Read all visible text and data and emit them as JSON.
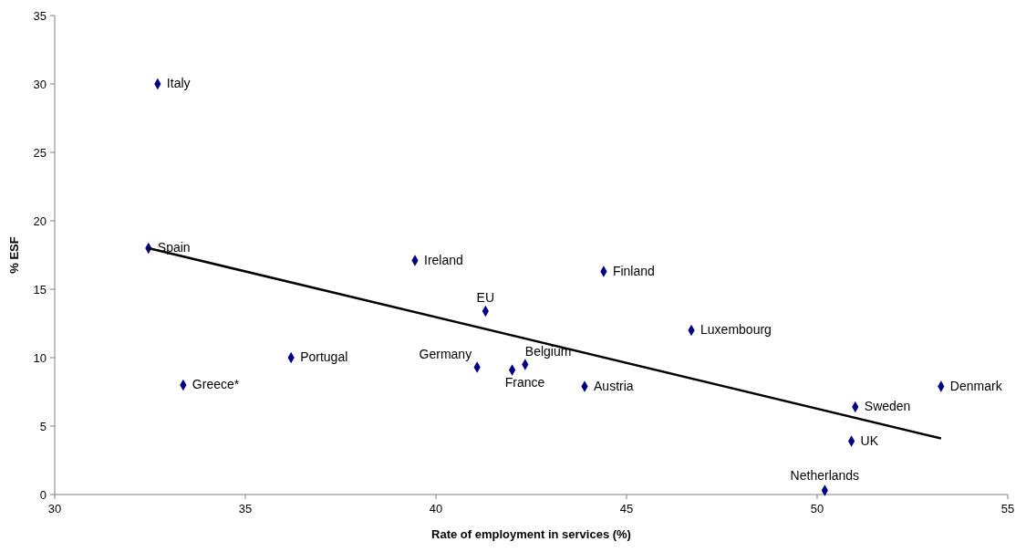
{
  "chart_data": {
    "type": "scatter",
    "xlabel": "Rate of employment in services (%)",
    "ylabel": "% ESF",
    "xlim": [
      30,
      55
    ],
    "ylim": [
      0,
      35
    ],
    "xticks": [
      30,
      35,
      40,
      45,
      50,
      55
    ],
    "yticks": [
      0,
      5,
      10,
      15,
      20,
      25,
      30,
      35
    ],
    "marker": "diamond",
    "grid": false,
    "series": [
      {
        "type": "scatter",
        "color": "#000080",
        "x": [
          32.7,
          32.46,
          33.37,
          36.2,
          39.45,
          41.08,
          41.3,
          42.0,
          42.34,
          43.9,
          44.4,
          46.7,
          51.0,
          50.9,
          50.2,
          53.25
        ],
        "values": [
          30.0,
          18.0,
          8.0,
          10.0,
          17.1,
          9.3,
          13.4,
          9.1,
          9.5,
          7.9,
          16.3,
          12.0,
          6.4,
          3.9,
          0.3,
          7.9
        ]
      },
      {
        "type": "line",
        "marker": "none",
        "color": "#000000",
        "x": [
          32.46,
          53.25
        ],
        "values": [
          18.0,
          4.1
        ]
      }
    ],
    "annotations": [
      {
        "text": "Italy",
        "x": 32.7,
        "y": 30.0
      },
      {
        "text": "Spain",
        "x": 32.46,
        "y": 18.0
      },
      {
        "text": "Greece*",
        "x": 33.37,
        "y": 8.0
      },
      {
        "text": "Portugal",
        "x": 36.2,
        "y": 10.0
      },
      {
        "text": "Ireland",
        "x": 39.45,
        "y": 17.1
      },
      {
        "text": "Germany",
        "x": 41.08,
        "y": 9.3
      },
      {
        "text": "EU",
        "x": 41.3,
        "y": 13.4
      },
      {
        "text": "France",
        "x": 42.0,
        "y": 9.1
      },
      {
        "text": "Belgium",
        "x": 42.34,
        "y": 9.5
      },
      {
        "text": "Austria",
        "x": 43.9,
        "y": 7.9
      },
      {
        "text": "Finland",
        "x": 44.4,
        "y": 16.3
      },
      {
        "text": "Luxembourg",
        "x": 46.7,
        "y": 12.0
      },
      {
        "text": "Sweden",
        "x": 51.0,
        "y": 6.4
      },
      {
        "text": "UK",
        "x": 50.9,
        "y": 3.9
      },
      {
        "text": "Netherlands",
        "x": 50.2,
        "y": 0.3
      },
      {
        "text": "Denmark",
        "x": 53.25,
        "y": 7.9
      }
    ]
  }
}
